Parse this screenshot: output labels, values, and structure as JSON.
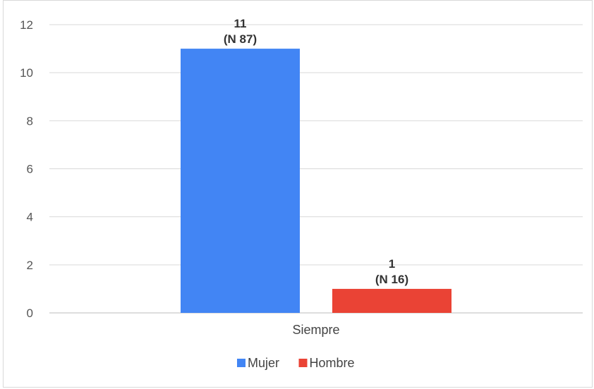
{
  "chart_data": {
    "type": "bar",
    "title": "",
    "xlabel": "",
    "ylabel": "",
    "categories": [
      "Siempre"
    ],
    "series": [
      {
        "name": "Mujer",
        "values": [
          11
        ],
        "data_label": [
          "11",
          "(N 87)"
        ],
        "color": "#4285F4"
      },
      {
        "name": "Hombre",
        "values": [
          1
        ],
        "data_label": [
          "1",
          "(N 16)"
        ],
        "color": "#EA4335"
      }
    ],
    "ylim": [
      0,
      12
    ],
    "yticks": [
      0,
      2,
      4,
      6,
      8,
      10,
      12
    ],
    "grid": true,
    "legend_position": "bottom"
  }
}
